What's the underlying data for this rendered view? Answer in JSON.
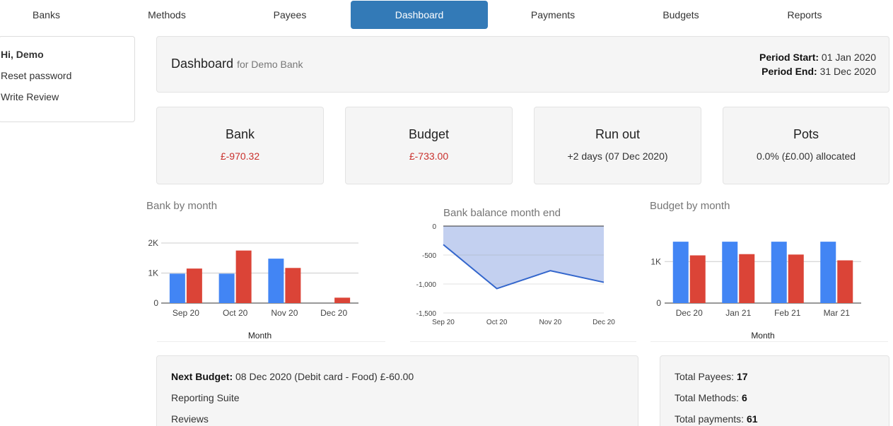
{
  "nav": {
    "items": [
      {
        "label": "Banks",
        "active": false
      },
      {
        "label": "Methods",
        "active": false
      },
      {
        "label": "Payees",
        "active": false
      },
      {
        "label": "Dashboard",
        "active": true
      },
      {
        "label": "Payments",
        "active": false
      },
      {
        "label": "Budgets",
        "active": false
      },
      {
        "label": "Reports",
        "active": false
      }
    ]
  },
  "sidebar": {
    "greeting": "Hi, Demo",
    "links": [
      "Reset password",
      "Write Review"
    ]
  },
  "header": {
    "title": "Dashboard",
    "subtitle": "for Demo Bank",
    "period_start_label": "Period Start:",
    "period_start_value": "01 Jan 2020",
    "period_end_label": "Period End:",
    "period_end_value": "31 Dec 2020"
  },
  "cards": [
    {
      "title": "Bank",
      "value": "£-970.32",
      "negative": true
    },
    {
      "title": "Budget",
      "value": "£-733.00",
      "negative": true
    },
    {
      "title": "Run out",
      "value": "+2 days (07 Dec 2020)",
      "negative": false
    },
    {
      "title": "Pots",
      "value": "0.0% (£0.00) allocated",
      "negative": false
    }
  ],
  "colors": {
    "accent": "#337ab7",
    "series_blue": "#4285f4",
    "series_red": "#db4437",
    "negative": "#c9302c",
    "area_fill": "#c3d0f0",
    "line": "#3366cc"
  },
  "chart_data": [
    {
      "type": "bar",
      "title": "Bank by month",
      "xlabel": "Month",
      "ylabel": "",
      "categories": [
        "Sep 20",
        "Oct 20",
        "Nov 20",
        "Dec 20"
      ],
      "yticks": [
        0,
        1000,
        2000
      ],
      "ytick_labels": [
        "0",
        "1K",
        "2K"
      ],
      "ylim": [
        0,
        2000
      ],
      "grid": true,
      "series": [
        {
          "color": "#4285f4",
          "values": [
            980,
            980,
            1480,
            0
          ]
        },
        {
          "color": "#db4437",
          "values": [
            1150,
            1750,
            1170,
            180
          ]
        }
      ]
    },
    {
      "type": "area",
      "title": "Bank balance month end",
      "xlabel": "",
      "ylabel": "",
      "x": [
        "Sep 20",
        "Oct 20",
        "Nov 20",
        "Dec 20"
      ],
      "yticks": [
        0,
        -500,
        -1000,
        -1500
      ],
      "ytick_labels": [
        "0",
        "-500",
        "-1,000",
        "-1,500"
      ],
      "ylim": [
        -1500,
        0
      ],
      "grid": true,
      "series": [
        {
          "color": "#3366cc",
          "values": [
            -320,
            -1080,
            -770,
            -970
          ]
        }
      ]
    },
    {
      "type": "bar",
      "title": "Budget by month",
      "xlabel": "Month",
      "ylabel": "",
      "categories": [
        "Dec 20",
        "Jan 21",
        "Feb 21",
        "Mar 21"
      ],
      "yticks": [
        0,
        1000
      ],
      "ytick_labels": [
        "0",
        "1K"
      ],
      "ylim": [
        0,
        1550
      ],
      "grid": true,
      "series": [
        {
          "color": "#4285f4",
          "values": [
            1480,
            1480,
            1480,
            1480
          ]
        },
        {
          "color": "#db4437",
          "values": [
            1150,
            1180,
            1170,
            1030
          ]
        }
      ]
    }
  ],
  "bottom_left": {
    "next_budget_label": "Next Budget:",
    "next_budget_value": "08 Dec 2020 (Debit card - Food) £-60.00",
    "links": [
      "Reporting Suite",
      "Reviews"
    ]
  },
  "bottom_right": {
    "stats": [
      {
        "label": "Total Payees:",
        "value": "17"
      },
      {
        "label": "Total Methods:",
        "value": "6"
      },
      {
        "label": "Total payments:",
        "value": "61"
      }
    ]
  }
}
